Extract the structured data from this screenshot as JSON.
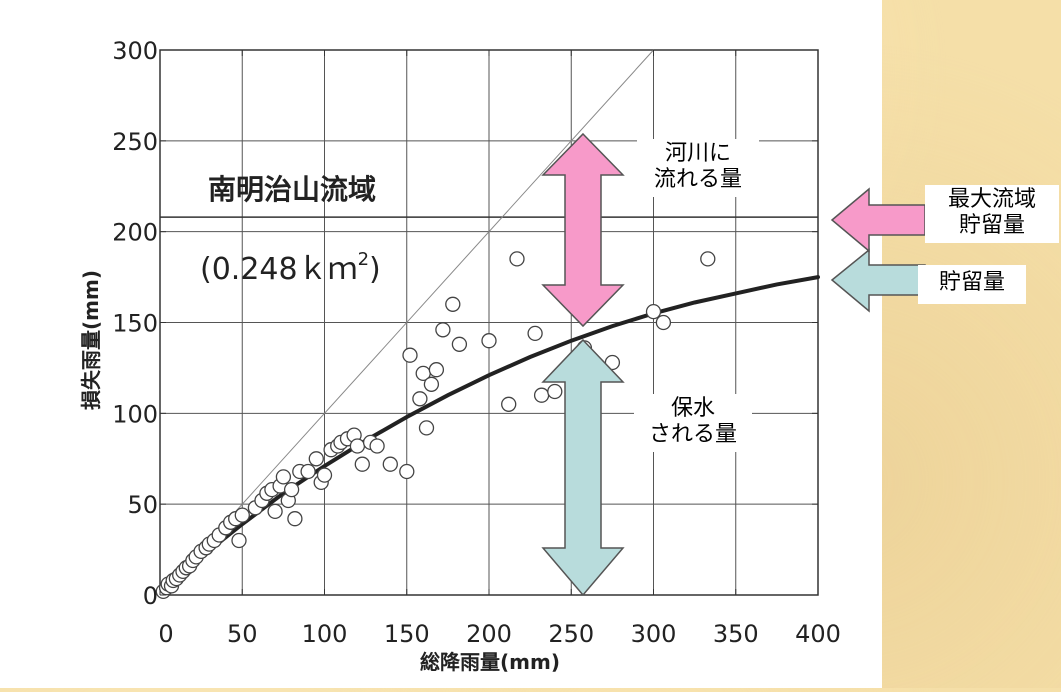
{
  "chart_data": {
    "type": "scatter",
    "xlabel": "総降雨量(mm)",
    "ylabel": "損失雨量(mm)",
    "xlim": [
      0,
      400
    ],
    "ylim": [
      0,
      300
    ],
    "x_ticks": [
      0,
      50,
      100,
      150,
      200,
      250,
      300,
      350,
      400
    ],
    "y_ticks": [
      0,
      50,
      100,
      150,
      200,
      250,
      300
    ],
    "grid": true,
    "basin_name": "南明治山流域",
    "basin_area": "(0.248ｋｍ",
    "basin_area_sup": "2",
    "basin_area_close": ")",
    "max_storage_level": 208,
    "series": [
      {
        "type": "scatter",
        "points": [
          [
            2,
            2
          ],
          [
            4,
            4
          ],
          [
            5,
            6
          ],
          [
            7,
            5
          ],
          [
            8,
            8
          ],
          [
            10,
            9
          ],
          [
            12,
            11
          ],
          [
            14,
            13
          ],
          [
            16,
            15
          ],
          [
            18,
            16
          ],
          [
            20,
            19
          ],
          [
            22,
            21
          ],
          [
            25,
            24
          ],
          [
            28,
            26
          ],
          [
            30,
            28
          ],
          [
            33,
            30
          ],
          [
            36,
            33
          ],
          [
            40,
            37
          ],
          [
            43,
            40
          ],
          [
            46,
            42
          ],
          [
            48,
            30
          ],
          [
            50,
            44
          ],
          [
            58,
            48
          ],
          [
            62,
            52
          ],
          [
            65,
            56
          ],
          [
            68,
            58
          ],
          [
            70,
            46
          ],
          [
            73,
            60
          ],
          [
            75,
            65
          ],
          [
            78,
            52
          ],
          [
            80,
            58
          ],
          [
            82,
            42
          ],
          [
            85,
            68
          ],
          [
            90,
            68
          ],
          [
            95,
            75
          ],
          [
            98,
            62
          ],
          [
            100,
            66
          ],
          [
            104,
            80
          ],
          [
            108,
            82
          ],
          [
            110,
            84
          ],
          [
            114,
            86
          ],
          [
            118,
            88
          ],
          [
            120,
            82
          ],
          [
            123,
            72
          ],
          [
            128,
            84
          ],
          [
            132,
            82
          ],
          [
            140,
            72
          ],
          [
            150,
            68
          ],
          [
            152,
            132
          ],
          [
            158,
            108
          ],
          [
            160,
            122
          ],
          [
            162,
            92
          ],
          [
            165,
            116
          ],
          [
            168,
            124
          ],
          [
            172,
            146
          ],
          [
            178,
            160
          ],
          [
            182,
            138
          ],
          [
            200,
            140
          ],
          [
            212,
            105
          ],
          [
            217,
            185
          ],
          [
            228,
            144
          ],
          [
            232,
            110
          ],
          [
            240,
            112
          ],
          [
            258,
            136
          ],
          [
            275,
            128
          ],
          [
            300,
            156
          ],
          [
            306,
            150
          ],
          [
            333,
            185
          ]
        ]
      },
      {
        "type": "line",
        "name": "",
        "x": [
          0,
          25,
          50,
          75,
          100,
          125,
          150,
          175,
          200,
          225,
          250,
          275,
          300,
          325,
          350,
          375,
          400
        ],
        "y": [
          0,
          21,
          39,
          56,
          71,
          85,
          98,
          110,
          121,
          131,
          140,
          148,
          155,
          161,
          166,
          171,
          175
        ]
      },
      {
        "type": "line",
        "name": "",
        "x": [
          0,
          300
        ],
        "y": [
          0,
          300
        ]
      }
    ]
  },
  "callouts": {
    "river": [
      "河川に",
      "流れる量"
    ],
    "retained": [
      "保水",
      "される量"
    ],
    "max_storage": [
      "最大流域",
      "貯留量"
    ],
    "storage": "貯留量"
  },
  "colors": {
    "pink": "#f79ac9",
    "teal": "#b8dcdc",
    "page_bg": "#f5dfa8"
  }
}
